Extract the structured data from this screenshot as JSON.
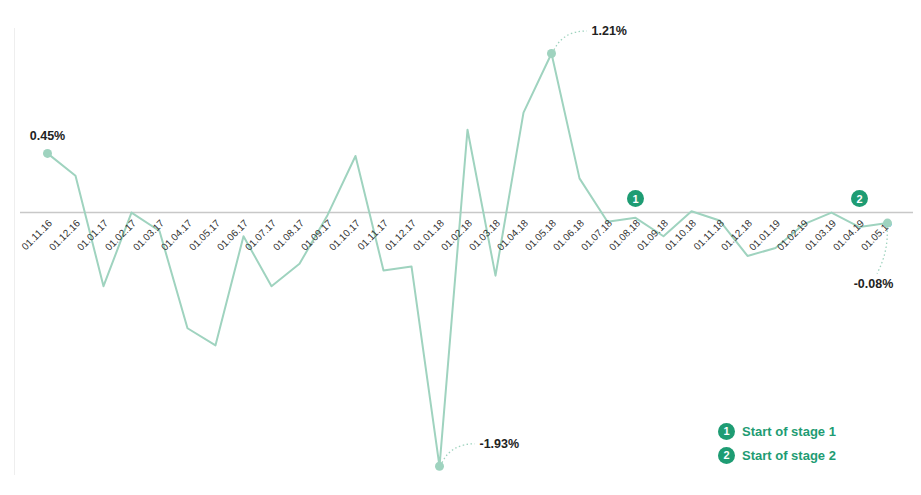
{
  "chart_data": {
    "type": "line",
    "x": [
      "01.11.16",
      "01.12.16",
      "01.01.17",
      "01.02.17",
      "01.03.17",
      "01.04.17",
      "01.05.17",
      "01.06.17",
      "01.07.17",
      "01.08.17",
      "01.09.17",
      "01.10.17",
      "01.11.17",
      "01.12.17",
      "01.01.18",
      "01.02.18",
      "01.03.18",
      "01.04.18",
      "01.05.18",
      "01.06.18",
      "01.07.18",
      "01.08.18",
      "01.09.18",
      "01.10.18",
      "01.11.18",
      "01.12.18",
      "01.01.19",
      "01.02.19",
      "01.03.19",
      "01.04.19",
      "01.05.19"
    ],
    "values": [
      0.45,
      0.28,
      -0.56,
      0.0,
      -0.14,
      -0.88,
      -1.01,
      -0.18,
      -0.56,
      -0.39,
      -0.02,
      0.43,
      -0.44,
      -0.41,
      -1.93,
      0.63,
      -0.48,
      0.76,
      1.21,
      0.26,
      -0.07,
      -0.04,
      -0.18,
      0.01,
      -0.06,
      -0.33,
      -0.27,
      -0.09,
      0.0,
      -0.11,
      -0.08
    ],
    "color": "#9fd3bf",
    "ylim": [
      -2.0,
      1.4
    ],
    "yticks": [
      0
    ],
    "tick_labels": "x",
    "annotations": [
      {
        "x": "01.11.16",
        "value": 0.45,
        "label": "0.45%"
      },
      {
        "x": "01.05.18",
        "value": 1.21,
        "label": "1.21%"
      },
      {
        "x": "01.01.18",
        "value": -1.93,
        "label": "-1.93%"
      },
      {
        "x": "01.05.19",
        "value": -0.08,
        "label": "-0.08%"
      }
    ],
    "stages": [
      {
        "x": "01.08.18",
        "label": "1",
        "text": "Start of stage 1"
      },
      {
        "x": "01.04.19",
        "label": "2",
        "text": "Start of stage 2"
      }
    ],
    "stage_color": "#1e9c73",
    "legend": "bottom-right"
  }
}
